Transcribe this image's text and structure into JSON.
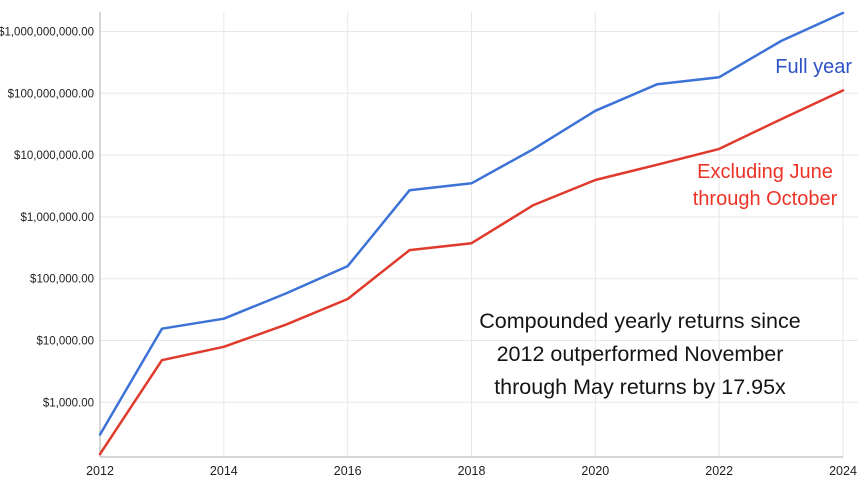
{
  "chart_data": {
    "type": "line",
    "title": "",
    "log_scale_y": true,
    "grid": true,
    "x": [
      2012,
      2013,
      2014,
      2015,
      2016,
      2017,
      2018,
      2019,
      2020,
      2021,
      2022,
      2023,
      2024
    ],
    "x_tick_labels": [
      "2012",
      "2014",
      "2016",
      "2018",
      "2020",
      "2022",
      "2024"
    ],
    "x_tick_years": [
      2012,
      2014,
      2016,
      2018,
      2020,
      2022,
      2024
    ],
    "y_ticks": [
      {
        "label": "$1,000.00",
        "value": 1000
      },
      {
        "label": "$10,000.00",
        "value": 10000
      },
      {
        "label": "$100,000.00",
        "value": 100000
      },
      {
        "label": "$1,000,000.00",
        "value": 1000000
      },
      {
        "label": "$10,000,000.00",
        "value": 10000000
      },
      {
        "label": "$100,000,000.00",
        "value": 100000000
      },
      {
        "label": "$1,000,000,000.00",
        "value": 1000000000
      }
    ],
    "xlim": [
      2012,
      2024
    ],
    "ylim_log10": [
      2.115,
      9.315
    ],
    "series": [
      {
        "name": "Full year",
        "label_text": "Full year",
        "color": "#3d72d6",
        "label_color": "#2d53c4",
        "values": [
          300,
          15500,
          22500,
          57500,
          160000,
          2700000,
          3500000,
          12500000,
          52000000,
          140000000,
          182000000,
          700000000,
          2000000000
        ]
      },
      {
        "name": "Excluding June through October",
        "label_text": "Excluding June\nthrough October",
        "color": "#e03a2d",
        "label_color": "#ed3327",
        "values": [
          145,
          4800,
          7900,
          18000,
          47000,
          290000,
          375000,
          1550000,
          3950000,
          7000000,
          12600000,
          38000000,
          111400000
        ]
      }
    ],
    "annotation": {
      "text": "Compounded yearly returns since\n2012 outperformed November\nthrough May returns by 17.95x",
      "outperformance_factor": "17.95x"
    },
    "legend_position": "inline-end-of-line-labels"
  }
}
